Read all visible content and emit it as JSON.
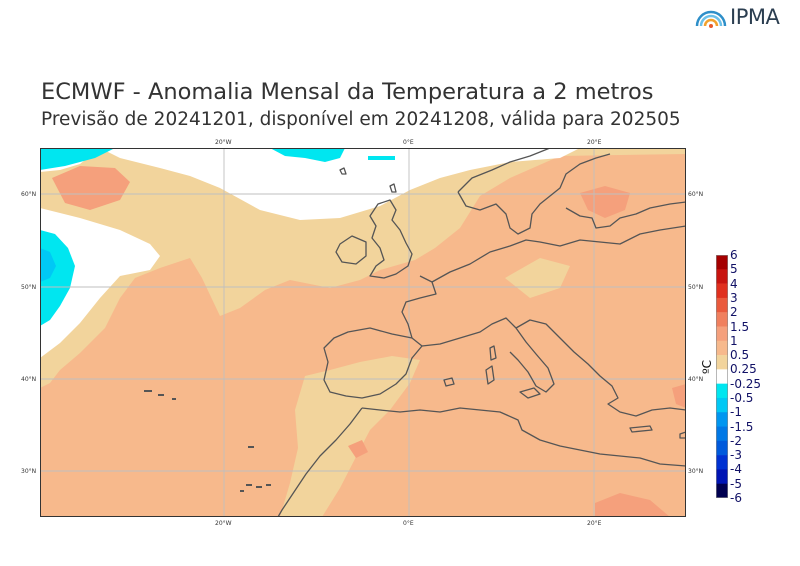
{
  "header": {
    "logo_text": "IPMA",
    "title": "ECMWF - Anomalia Mensal da Temperatura a 2 metros",
    "subtitle": "Previsão de 20241201, disponível em 20241208, válida para 202505"
  },
  "map": {
    "lon_ticks_top": [
      "20°W",
      "0°E",
      "20°E"
    ],
    "lon_ticks_bottom": [
      "20°W",
      "0°E",
      "20°E"
    ],
    "lat_ticks_left": [
      "60°N",
      "50°N",
      "40°N",
      "30°N"
    ],
    "lat_ticks_right": [
      "60°N",
      "50°N",
      "40°N",
      "30°N"
    ]
  },
  "colorbar": {
    "unit": "ºC",
    "labels": [
      "6",
      "5",
      "4",
      "3",
      "2",
      "1.5",
      "1",
      "0.5",
      "0.25",
      "-0.25",
      "-0.5",
      "-1",
      "-1.5",
      "-2",
      "-3",
      "-4",
      "-5",
      "-6"
    ],
    "colors": [
      "#a50000",
      "#c8140f",
      "#e0301e",
      "#ea5a3c",
      "#f0805e",
      "#f5a07c",
      "#f7b98c",
      "#f2d49c",
      "#ffffff",
      "#00e6f0",
      "#00c8f5",
      "#0096f0",
      "#0078e6",
      "#005adc",
      "#0032d2",
      "#0014b4",
      "#000050"
    ]
  }
}
